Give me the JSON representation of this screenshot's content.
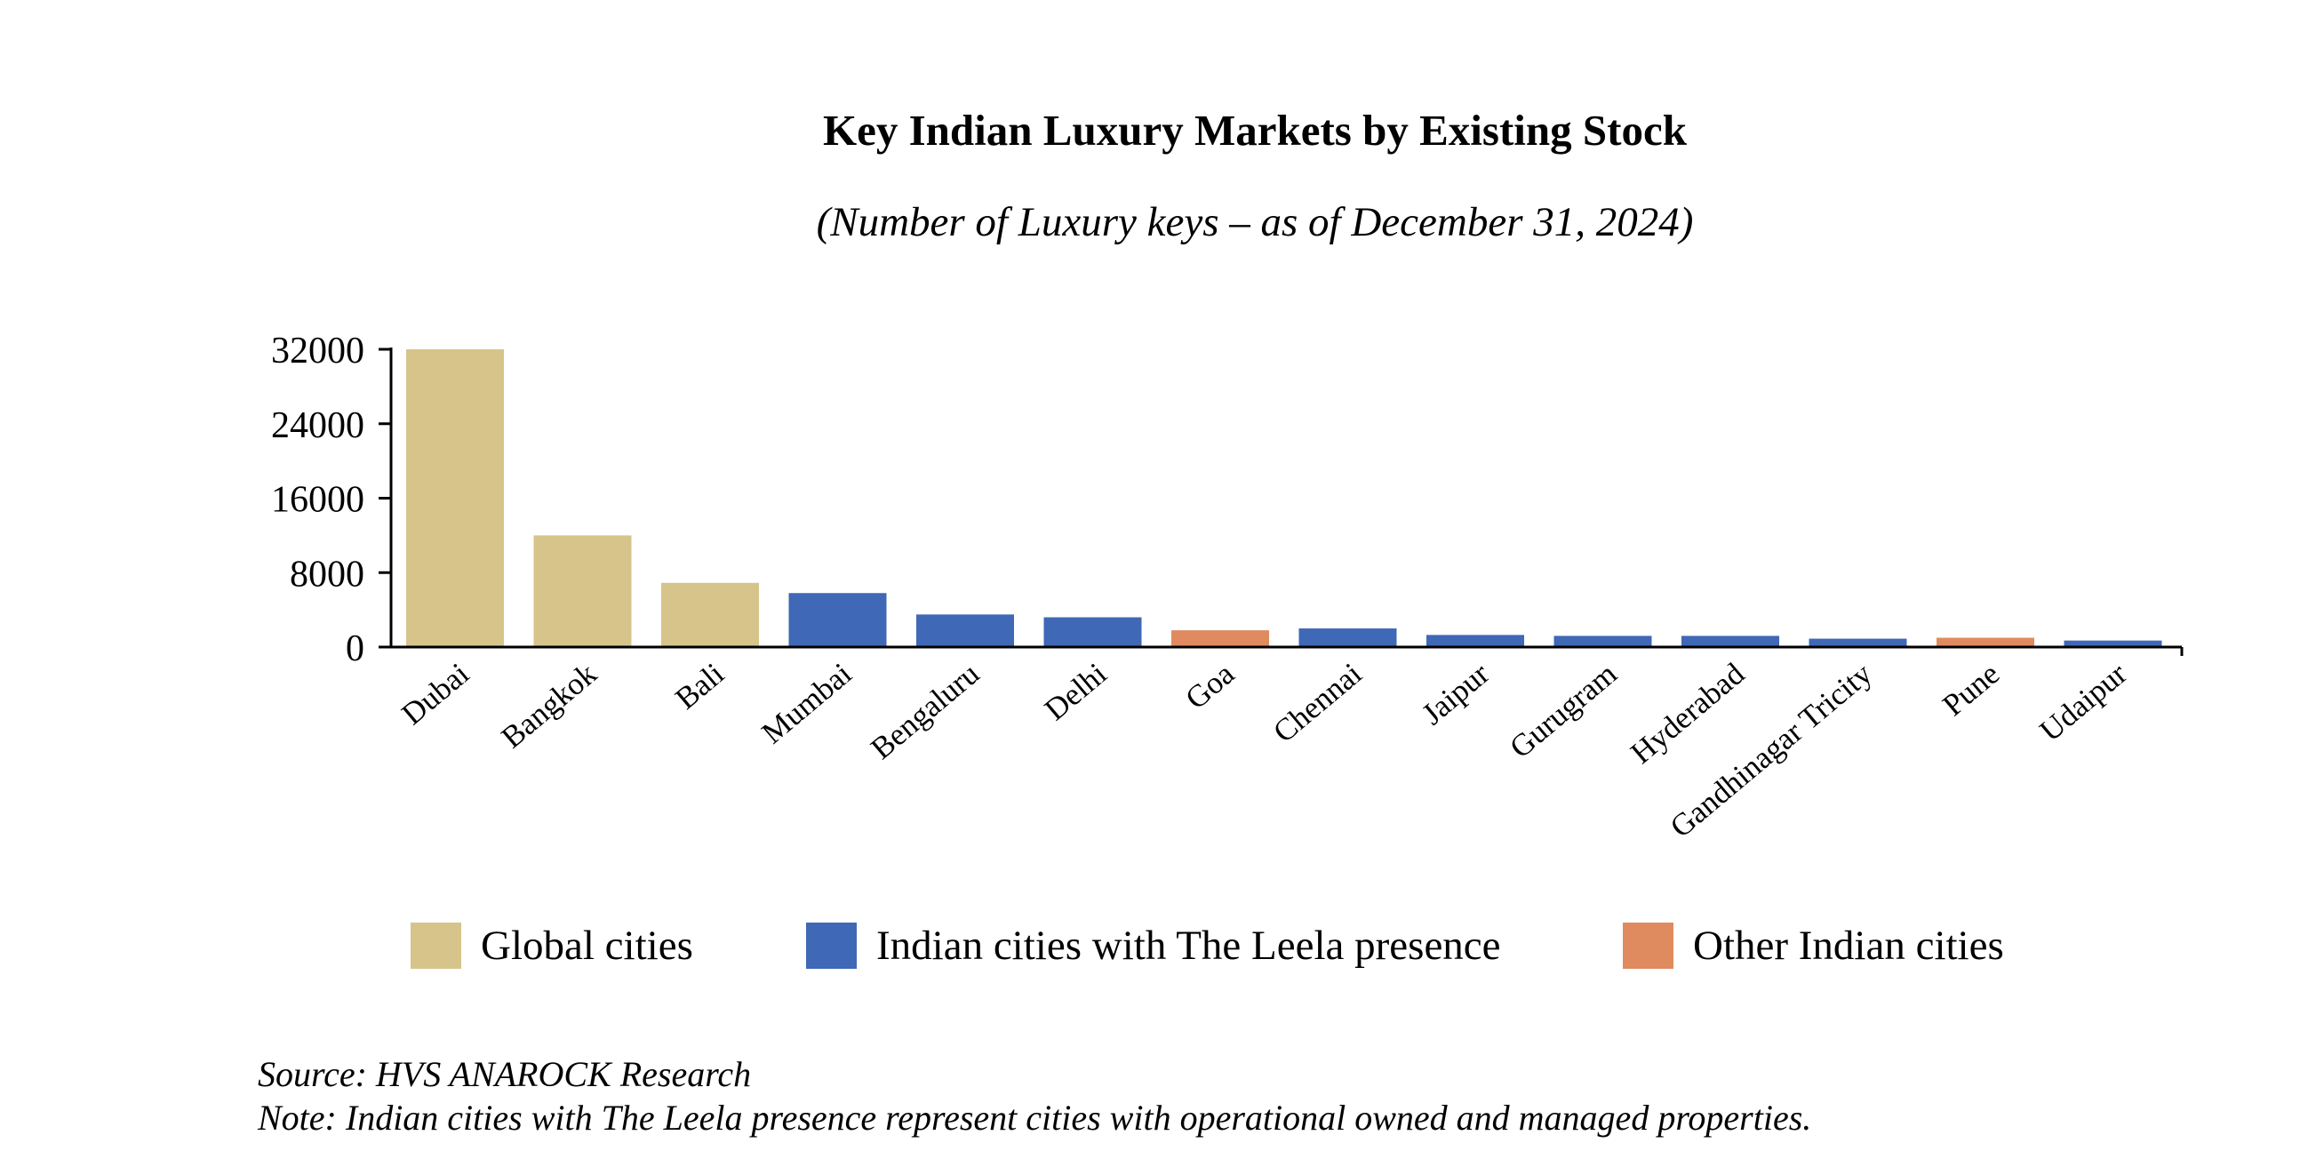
{
  "chart_data": {
    "type": "bar",
    "title": "Key Indian Luxury Markets by Existing Stock",
    "subtitle": "(Number of Luxury keys – as of December 31, 2024)",
    "xlabel": "",
    "ylabel": "",
    "ylim": [
      0,
      32000
    ],
    "yticks": [
      "0",
      "8000",
      "16000",
      "24000",
      "32000"
    ],
    "grid": false,
    "legend_position": "bottom",
    "categories": [
      "Dubai",
      "Bangkok",
      "Bali",
      "Mumbai",
      "Bengaluru",
      "Delhi",
      "Goa",
      "Chennai",
      "Jaipur",
      "Gurugram",
      "Hyderabad",
      "Gandhinagar Tricity",
      "Pune",
      "Udaipur"
    ],
    "values": [
      32000,
      12000,
      6900,
      5800,
      3500,
      3200,
      1800,
      2000,
      1300,
      1200,
      1200,
      900,
      1000,
      700
    ],
    "groups": [
      "global",
      "global",
      "global",
      "leela",
      "leela",
      "leela",
      "other",
      "leela",
      "leela",
      "leela",
      "leela",
      "leela",
      "other",
      "leela"
    ],
    "legend": [
      {
        "key": "global",
        "label": "Global cities",
        "color": "#d6c48b"
      },
      {
        "key": "leela",
        "label": "Indian cities with The Leela presence",
        "color": "#3f68b6"
      },
      {
        "key": "other",
        "label": "Other Indian cities",
        "color": "#e08a60"
      }
    ]
  },
  "footnotes": {
    "source": "Source: HVS ANAROCK Research",
    "note": "Note: Indian cities with The Leela presence represent cities with operational owned and managed properties."
  }
}
